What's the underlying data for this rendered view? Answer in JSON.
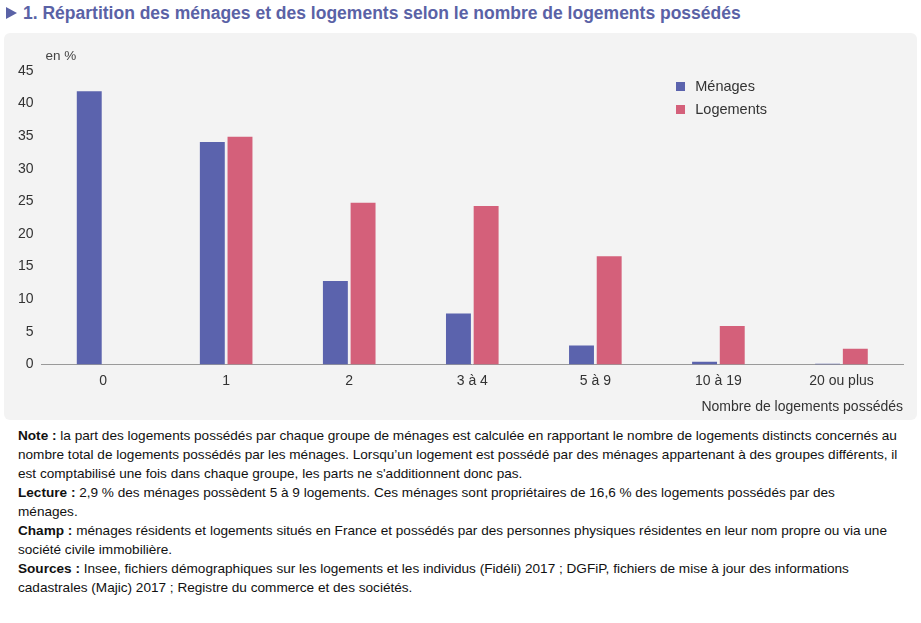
{
  "chart_data": {
    "type": "bar",
    "title": "1. Répartition des ménages et des logements selon le nombre de logements possédés",
    "y_unit_label": "en %",
    "x_label": "Nombre de logements possédés",
    "categories": [
      "0",
      "1",
      "2",
      "3 à 4",
      "5 à 9",
      "10 à 19",
      "20 ou plus"
    ],
    "series": [
      {
        "name": "Ménages",
        "color": "#5b63ad",
        "values": [
          41.9,
          34.1,
          12.8,
          7.8,
          2.9,
          0.4,
          0.1
        ]
      },
      {
        "name": "Logements",
        "color": "#d4607a",
        "values": [
          null,
          34.9,
          24.8,
          24.3,
          16.6,
          5.9,
          2.4
        ]
      }
    ],
    "ylim": [
      0,
      45
    ],
    "yticks": [
      0,
      5,
      10,
      15,
      20,
      25,
      30,
      35,
      40,
      45
    ],
    "grid": false,
    "legend": "top-right",
    "notes": [
      {
        "label": "Note :",
        "text": "la part des logements possédés par chaque groupe de ménages est calculée en rapportant le nombre de logements distincts concernés au nombre total de logements possédés par les ménages. Lorsqu’un logement est possédé par des ménages appartenant à des groupes différents, il est comptabilisé une fois dans chaque groupe, les parts ne s'additionnent donc pas."
      },
      {
        "label": "Lecture :",
        "text": "2,9 % des ménages possèdent 5 à 9 logements. Ces ménages sont propriétaires de 16,6 % des logements possédés par des ménages."
      },
      {
        "label": "Champ :",
        "text": "ménages résidents et logements situés en France et possédés par des personnes physiques résidentes en leur nom propre ou via une société civile immobilière."
      },
      {
        "label": "Sources :",
        "text": "Insee, fichiers démographiques sur les logements et les individus (Fidéli) 2017 ; DGFiP, fichiers de mise à jour des informations cadastrales (Majic) 2017 ; Registre du commerce et des sociétés."
      }
    ]
  }
}
